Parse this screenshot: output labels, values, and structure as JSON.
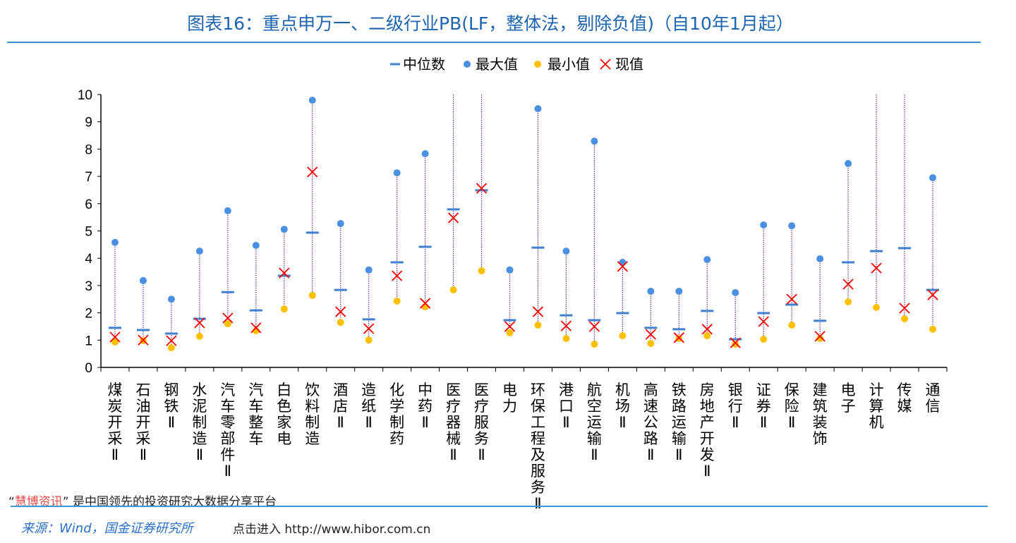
{
  "title": "图表16：重点申万一、二级行业PB(LF，整体法，剔除负值)（自10年1月起）",
  "footer": {
    "brand_quote_open": "“",
    "brand": "慧博资讯",
    "brand_quote_close": "”",
    "tagline": "是中国领先的投资研究大数据分享平台",
    "source": "来源：Wind，国金证券研究所",
    "link": "点击进入 http://www.hibor.com.cn"
  },
  "chart_data": {
    "type": "scatter",
    "title": "图表16：重点申万一、二级行业PB(LF，整体法，剔除负值)（自10年1月起）",
    "ylim": [
      0,
      10
    ],
    "yticks": [
      0,
      1,
      2,
      3,
      4,
      5,
      6,
      7,
      8,
      9,
      10
    ],
    "grid": false,
    "legend_position": "top",
    "colors": {
      "median": "#3f7fd0",
      "max": "#4a90e2",
      "min": "#ffc000",
      "current": "#ff0000",
      "range_line": "#7030a0"
    },
    "legend": [
      "中位数",
      "最大值",
      "最小值",
      "现值"
    ],
    "categories": [
      "煤炭开采Ⅱ",
      "石油开采Ⅱ",
      "钢铁Ⅱ",
      "水泥制造Ⅱ",
      "汽车零部件Ⅱ",
      "汽车整车",
      "白色家电",
      "饮料制造",
      "酒店Ⅱ",
      "造纸Ⅱ",
      "化学制药",
      "中药Ⅱ",
      "医疗器械Ⅱ",
      "医疗服务Ⅱ",
      "电力",
      "环保工程及服务Ⅱ",
      "港口Ⅱ",
      "航空运输Ⅱ",
      "机场Ⅱ",
      "高速公路Ⅱ",
      "铁路运输Ⅱ",
      "房地产开发Ⅱ",
      "银行Ⅱ",
      "证券Ⅱ",
      "保险Ⅱ",
      "建筑装饰",
      "电子",
      "计算机",
      "传媒",
      "通信"
    ],
    "series": [
      {
        "name": "中位数",
        "values": [
          1.45,
          1.37,
          1.24,
          1.78,
          2.76,
          2.09,
          3.36,
          4.94,
          2.84,
          1.76,
          3.85,
          4.42,
          5.79,
          6.49,
          1.73,
          4.39,
          1.91,
          1.73,
          1.99,
          1.45,
          1.4,
          2.07,
          1.03,
          1.99,
          2.3,
          1.71,
          3.85,
          4.26,
          4.37,
          2.84
        ]
      },
      {
        "name": "最大值",
        "values": [
          4.58,
          3.18,
          2.5,
          4.26,
          5.74,
          4.47,
          5.06,
          9.79,
          5.27,
          3.57,
          7.13,
          7.83,
          null,
          null,
          3.57,
          9.48,
          4.26,
          8.29,
          3.85,
          2.79,
          2.79,
          3.95,
          2.74,
          5.22,
          5.19,
          3.98,
          7.47,
          null,
          null,
          6.95
        ]
      },
      {
        "name": "最小值",
        "values": [
          0.93,
          0.98,
          0.72,
          1.14,
          1.6,
          1.34,
          2.14,
          2.64,
          1.65,
          1.0,
          2.43,
          2.22,
          2.84,
          3.54,
          1.27,
          1.55,
          1.06,
          0.85,
          1.16,
          0.88,
          1.06,
          1.16,
          0.85,
          1.03,
          1.55,
          1.06,
          2.4,
          2.2,
          1.78,
          1.4
        ]
      },
      {
        "name": "现值",
        "values": [
          1.11,
          1.0,
          0.98,
          1.63,
          1.81,
          1.45,
          3.46,
          7.16,
          2.04,
          1.42,
          3.36,
          2.35,
          5.48,
          6.56,
          1.5,
          2.04,
          1.52,
          1.5,
          3.7,
          1.21,
          1.09,
          1.4,
          0.9,
          1.68,
          2.5,
          1.14,
          3.05,
          3.64,
          2.17,
          2.66
        ]
      }
    ]
  }
}
